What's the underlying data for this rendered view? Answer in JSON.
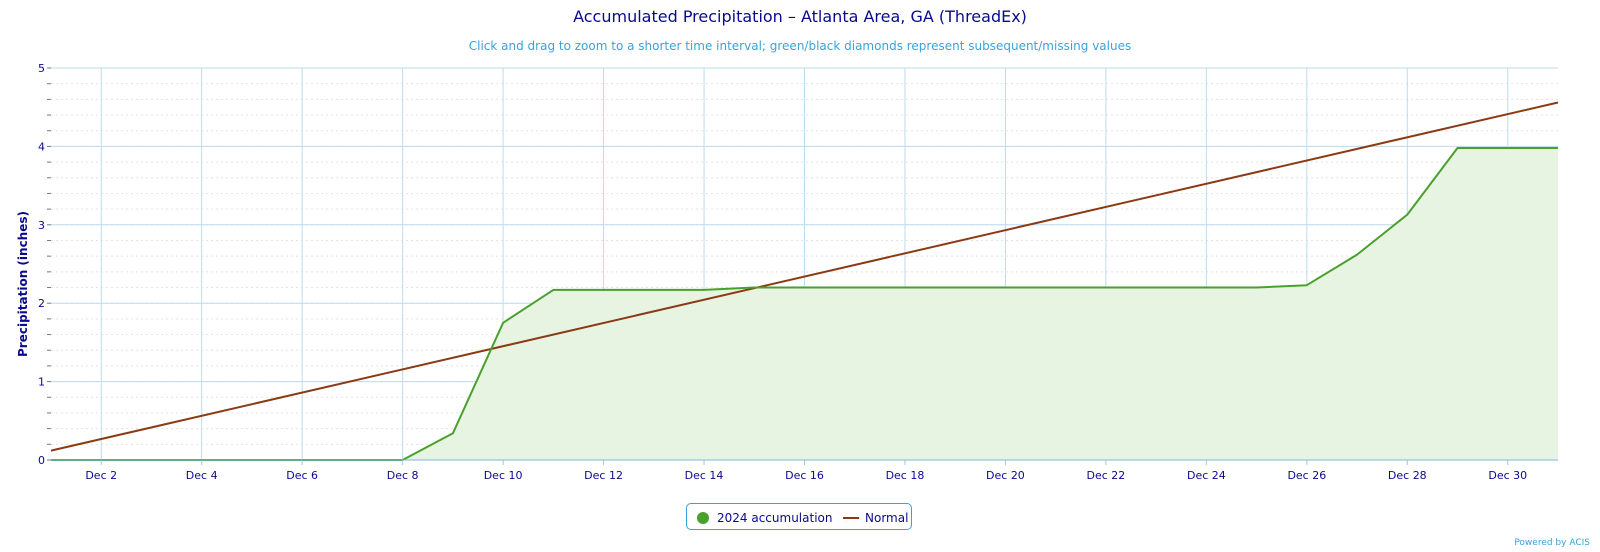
{
  "chart_data": {
    "type": "area",
    "title": "Accumulated Precipitation – Atlanta Area, GA (ThreadEx)",
    "subtitle": "Click and drag to zoom to a shorter time interval; green/black diamonds represent subsequent/missing values",
    "ylabel": "Precipitation (inches)",
    "xlabel": "",
    "ylim": [
      0,
      5
    ],
    "xlim": [
      1,
      31
    ],
    "y_ticks": [
      "0",
      "1",
      "2",
      "3",
      "4",
      "5"
    ],
    "x_ticks": [
      {
        "day": 2,
        "label": "Dec 2"
      },
      {
        "day": 4,
        "label": "Dec 4"
      },
      {
        "day": 6,
        "label": "Dec 6"
      },
      {
        "day": 8,
        "label": "Dec 8"
      },
      {
        "day": 10,
        "label": "Dec 10"
      },
      {
        "day": 12,
        "label": "Dec 12"
      },
      {
        "day": 14,
        "label": "Dec 14"
      },
      {
        "day": 16,
        "label": "Dec 16"
      },
      {
        "day": 18,
        "label": "Dec 18"
      },
      {
        "day": 20,
        "label": "Dec 20"
      },
      {
        "day": 22,
        "label": "Dec 22"
      },
      {
        "day": 24,
        "label": "Dec 24"
      },
      {
        "day": 26,
        "label": "Dec 26"
      },
      {
        "day": 28,
        "label": "Dec 28"
      },
      {
        "day": 30,
        "label": "Dec 30"
      }
    ],
    "grid": true,
    "legend_position": "bottom-center",
    "series": [
      {
        "name": "2024 accumulation",
        "color": "#4aa02c",
        "fill": "#e8f4e2",
        "x": [
          1,
          2,
          3,
          4,
          5,
          6,
          7,
          8,
          9,
          10,
          11,
          12,
          13,
          14,
          15,
          16,
          17,
          18,
          19,
          20,
          21,
          22,
          23,
          24,
          25,
          26,
          27,
          28,
          29,
          30,
          31
        ],
        "y": [
          0,
          0,
          0,
          0,
          0,
          0,
          0,
          0,
          0.34,
          1.75,
          2.17,
          2.17,
          2.17,
          2.17,
          2.2,
          2.2,
          2.2,
          2.2,
          2.2,
          2.2,
          2.2,
          2.2,
          2.2,
          2.2,
          2.2,
          2.23,
          2.62,
          3.13,
          3.98,
          3.98,
          3.98
        ]
      },
      {
        "name": "Normal",
        "color": "#8b3a14",
        "x": [
          1,
          31
        ],
        "y": [
          0.12,
          4.56
        ]
      }
    ]
  },
  "credit": "Powered by ACIS"
}
